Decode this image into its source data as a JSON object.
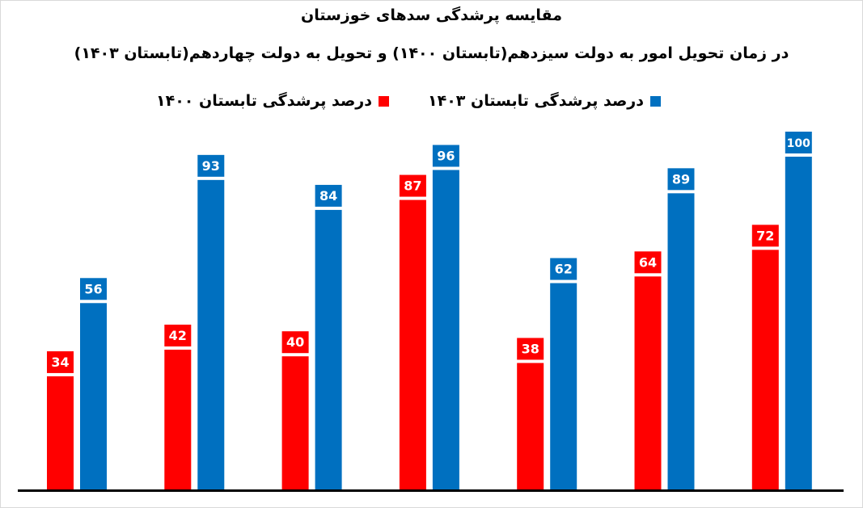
{
  "title": "مقایسه پرشدگی سدهای خوزستان",
  "subtitle": "در زمان تحویل امور به دولت سیزدهم(تابستان ۱۴۰۰) و تحویل به دولت چهاردهم(تابستان ۱۴۰۳)",
  "chart_data": {
    "type": "bar",
    "categories": [
      "",
      "",
      "",
      "",
      "",
      "",
      ""
    ],
    "series": [
      {
        "name": "درصد پرشدگی تابستان ۱۴۰۰",
        "color": "#ff0000",
        "values": [
          34,
          42,
          40,
          87,
          38,
          64,
          72
        ]
      },
      {
        "name": "درصد پرشدگی تابستان ۱۴۰۳",
        "color": "#0070c0",
        "values": [
          56,
          93,
          84,
          96,
          62,
          89,
          100
        ]
      }
    ],
    "ylim": [
      0,
      100
    ],
    "grid": false,
    "legend_position": "top"
  }
}
